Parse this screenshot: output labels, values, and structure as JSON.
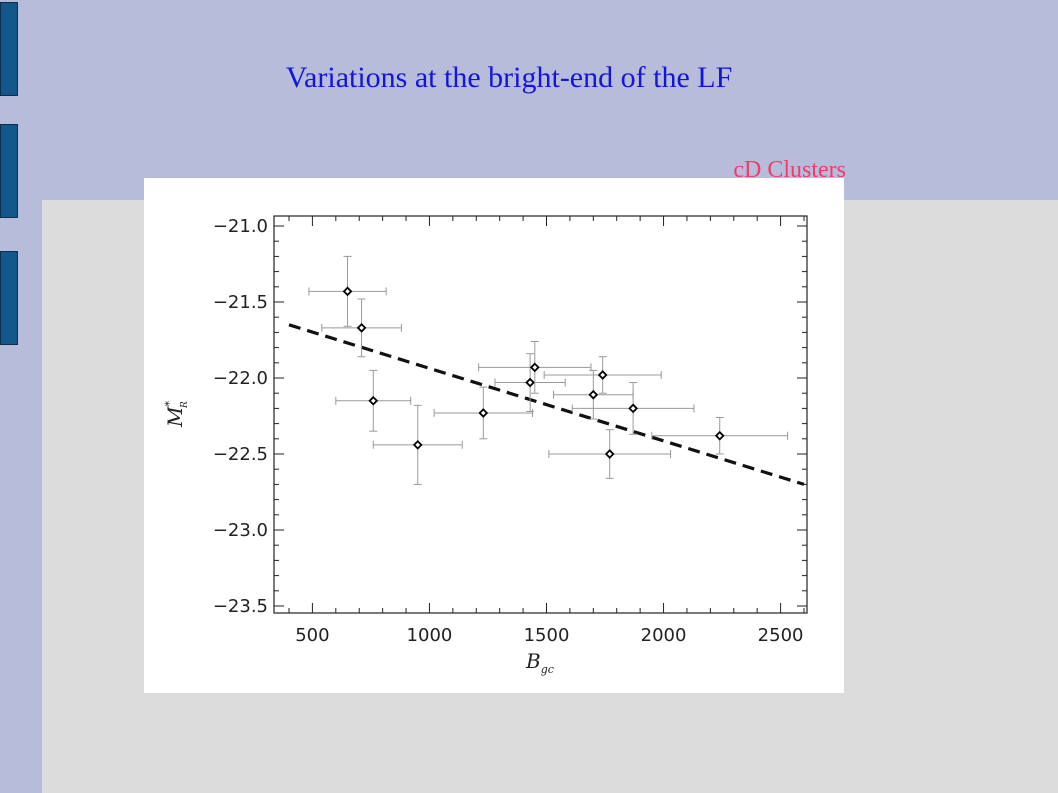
{
  "slide": {
    "title": "Variations at the bright-end of the LF",
    "tag": "cD Clusters"
  },
  "colors": {
    "background": "#dcdcdc",
    "band": "#b8bcdb",
    "tab": "#14578a",
    "title": "#1414e0",
    "tag": "#ee3d6a"
  },
  "chart_data": {
    "type": "scatter",
    "xlabel": "B",
    "xlabel_sub": "gc",
    "ylabel": "M",
    "ylabel_sup": "*",
    "ylabel_sub": "R",
    "xlim": [
      400,
      2600
    ],
    "ylim": [
      -21.0,
      -23.5
    ],
    "y_inverted": true,
    "x_ticks": [
      500,
      1000,
      1500,
      2000,
      2500
    ],
    "x_tick_labels": [
      "500",
      "1000",
      "1500",
      "2000",
      "2500"
    ],
    "y_ticks": [
      -21.0,
      -21.5,
      -22.0,
      -22.5,
      -23.0,
      -23.5
    ],
    "y_tick_labels": [
      "−21.0",
      "−21.5",
      "−22.0",
      "−22.5",
      "−23.0",
      "−23.5"
    ],
    "grid": false,
    "points": [
      {
        "x": 650,
        "y": -21.43,
        "xerr": 165,
        "yerr": 0.23
      },
      {
        "x": 710,
        "y": -21.67,
        "xerr": 170,
        "yerr": 0.19
      },
      {
        "x": 760,
        "y": -22.15,
        "xerr": 160,
        "yerr": 0.2
      },
      {
        "x": 950,
        "y": -22.44,
        "xerr": 190,
        "yerr": 0.26
      },
      {
        "x": 1230,
        "y": -22.23,
        "xerr": 210,
        "yerr": 0.17
      },
      {
        "x": 1430,
        "y": -22.03,
        "xerr": 150,
        "yerr": 0.19
      },
      {
        "x": 1450,
        "y": -21.93,
        "xerr": 240,
        "yerr": 0.17
      },
      {
        "x": 1700,
        "y": -22.11,
        "xerr": 170,
        "yerr": 0.16
      },
      {
        "x": 1740,
        "y": -21.98,
        "xerr": 250,
        "yerr": 0.12
      },
      {
        "x": 1770,
        "y": -22.5,
        "xerr": 260,
        "yerr": 0.16
      },
      {
        "x": 1870,
        "y": -22.2,
        "xerr": 260,
        "yerr": 0.17
      },
      {
        "x": 2240,
        "y": -22.38,
        "xerr": 290,
        "yerr": 0.12
      }
    ],
    "fit_line": {
      "style": "dashed",
      "x": [
        400,
        2600
      ],
      "y": [
        -21.65,
        -22.7
      ]
    }
  }
}
